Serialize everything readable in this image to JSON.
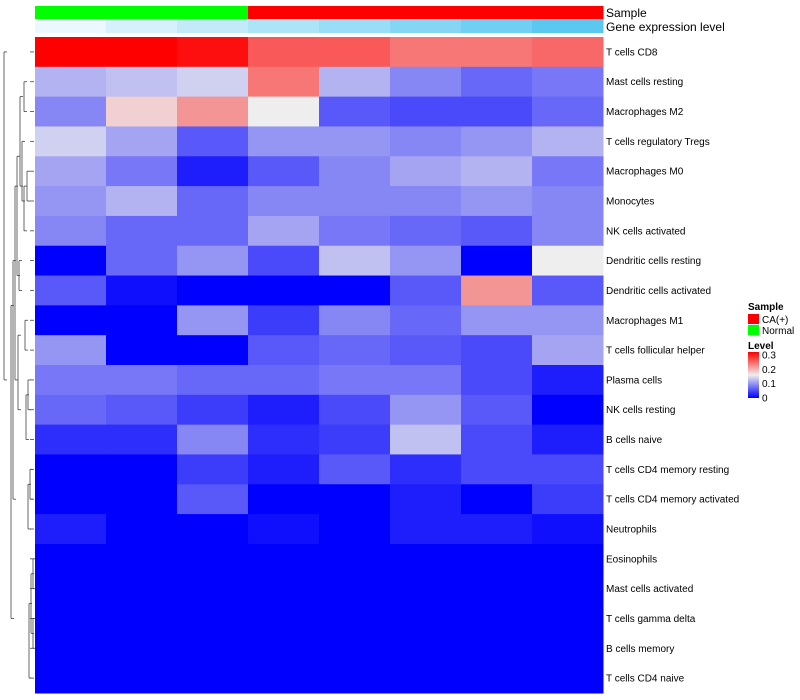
{
  "chart_data": {
    "type": "heatmap",
    "title": "",
    "row_labels": [
      "T cells CD8",
      "Mast cells resting",
      "Macrophages M2",
      "T cells regulatory  Tregs",
      "Macrophages M0",
      "Monocytes",
      "NK cells activated",
      "Dendritic cells resting",
      "Dendritic cells activated",
      "Macrophages M1",
      "T cells follicular helper",
      "Plasma cells",
      "NK cells resting",
      "B cells naive",
      "T cells CD4 memory resting",
      "T cells CD4 memory activated",
      "Neutrophils",
      "Eosinophils",
      "Mast cells activated",
      "T cells gamma delta",
      "B cells memory",
      "T cells CD4 naive"
    ],
    "columns": 8,
    "values": [
      [
        0.32,
        0.32,
        0.31,
        0.26,
        0.26,
        0.24,
        0.24,
        0.25
      ],
      [
        0.12,
        0.13,
        0.14,
        0.24,
        0.12,
        0.09,
        0.07,
        0.08
      ],
      [
        0.09,
        0.18,
        0.22,
        0.16,
        0.06,
        0.05,
        0.05,
        0.07
      ],
      [
        0.14,
        0.11,
        0.06,
        0.1,
        0.1,
        0.09,
        0.1,
        0.12
      ],
      [
        0.11,
        0.08,
        0.02,
        0.06,
        0.09,
        0.11,
        0.12,
        0.08
      ],
      [
        0.1,
        0.12,
        0.07,
        0.09,
        0.09,
        0.09,
        0.1,
        0.09
      ],
      [
        0.09,
        0.07,
        0.07,
        0.11,
        0.08,
        0.07,
        0.06,
        0.09
      ],
      [
        0.0,
        0.07,
        0.1,
        0.05,
        0.13,
        0.1,
        0.0,
        0.16
      ],
      [
        0.06,
        0.01,
        0.0,
        0.0,
        0.0,
        0.06,
        0.22,
        0.06
      ],
      [
        0.0,
        0.0,
        0.1,
        0.04,
        0.09,
        0.07,
        0.1,
        0.1
      ],
      [
        0.1,
        0.0,
        0.0,
        0.06,
        0.07,
        0.06,
        0.05,
        0.11
      ],
      [
        0.08,
        0.08,
        0.07,
        0.07,
        0.08,
        0.08,
        0.05,
        0.02
      ],
      [
        0.07,
        0.06,
        0.04,
        0.02,
        0.05,
        0.1,
        0.06,
        0.0
      ],
      [
        0.03,
        0.03,
        0.09,
        0.03,
        0.04,
        0.13,
        0.05,
        0.02
      ],
      [
        0.0,
        0.0,
        0.04,
        0.02,
        0.06,
        0.03,
        0.05,
        0.05
      ],
      [
        0.0,
        0.0,
        0.06,
        0.0,
        0.0,
        0.02,
        0.0,
        0.04
      ],
      [
        0.02,
        0.0,
        0.0,
        0.01,
        0.0,
        0.02,
        0.02,
        0.01
      ],
      [
        0.0,
        0.0,
        0.0,
        0.0,
        0.0,
        0.0,
        0.0,
        0.0
      ],
      [
        0.0,
        0.0,
        0.0,
        0.0,
        0.0,
        0.0,
        0.0,
        0.0
      ],
      [
        0.0,
        0.0,
        0.0,
        0.0,
        0.0,
        0.0,
        0.0,
        0.0
      ],
      [
        0.0,
        0.0,
        0.0,
        0.0,
        0.0,
        0.0,
        0.0,
        0.0
      ],
      [
        0.0,
        0.0,
        0.0,
        0.0,
        0.0,
        0.0,
        0.0,
        0.0
      ]
    ],
    "column_annotations": {
      "sample_track_label": "Sample",
      "sample": [
        "Normal",
        "Normal",
        "Normal",
        "CA(+)",
        "CA(+)",
        "CA(+)",
        "CA(+)",
        "CA(+)"
      ],
      "expression_track_label": "Gene expression level",
      "expression_level": [
        1,
        2,
        3,
        4,
        5,
        6,
        7,
        8
      ]
    },
    "sample_legend": {
      "title": "Sample",
      "entries": [
        {
          "label": "CA(+)",
          "color": "#ff0000"
        },
        {
          "label": "Normal",
          "color": "#00ff00"
        }
      ]
    },
    "level_legend": {
      "title": "Level",
      "ticks": [
        "0.3",
        "0.2",
        "0.1",
        "0"
      ],
      "tick_values": [
        0.3,
        0.2,
        0.1,
        0.0
      ],
      "range": [
        0,
        0.32
      ],
      "low_color": "#0000ff",
      "mid_color": "#eeeeee",
      "high_color": "#ff0000"
    },
    "expression_gradient": {
      "low_color": "#ffffff",
      "high_color": "#5bc8f0"
    },
    "dendrogram": "hierarchical clustering tree on rows (left side)"
  }
}
